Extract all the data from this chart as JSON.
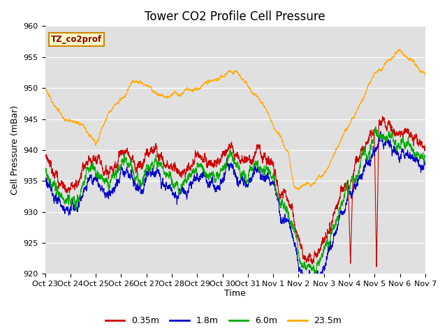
{
  "title": "Tower CO2 Profile Cell Pressure",
  "ylabel": "Cell Pressure (mBar)",
  "xlabel": "Time",
  "legend_label": "TZ_co2prof",
  "series_labels": [
    "0.35m",
    "1.8m",
    "6.0m",
    "23.5m"
  ],
  "series_colors": [
    "#cc0000",
    "#0000cc",
    "#00aa00",
    "#ffaa00"
  ],
  "ylim": [
    920,
    960
  ],
  "yticks": [
    920,
    925,
    930,
    935,
    940,
    945,
    950,
    955,
    960
  ],
  "xtick_labels": [
    "Oct 23",
    "Oct 24",
    "Oct 25",
    "Oct 26",
    "Oct 27",
    "Oct 28",
    "Oct 29",
    "Oct 30",
    "Oct 31",
    "Nov 1",
    "Nov 2",
    "Nov 3",
    "Nov 4",
    "Nov 5",
    "Nov 6",
    "Nov 7"
  ],
  "n_days": 15,
  "background_color": "#e0e0e0",
  "title_fontsize": 12,
  "tick_fontsize": 8,
  "axis_label_fontsize": 9
}
